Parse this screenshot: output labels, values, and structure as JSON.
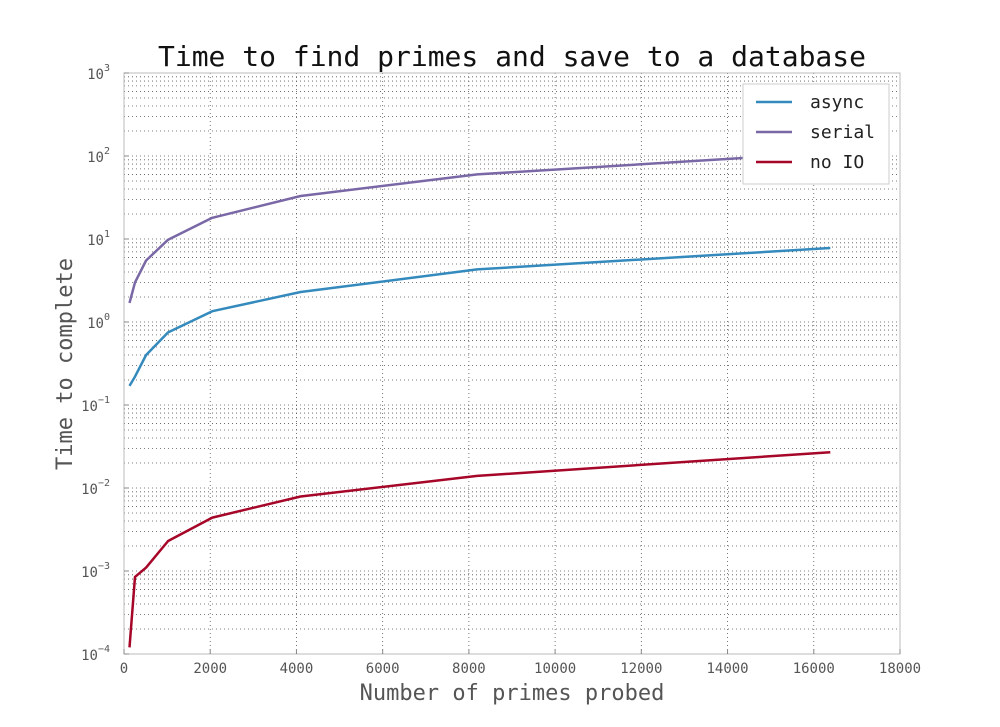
{
  "chart_data": {
    "type": "line",
    "title": "Time to find primes and save to a database",
    "xlabel": "Number of primes probed",
    "ylabel": "Time to complete",
    "xlim": [
      0,
      18000
    ],
    "ylim": [
      0.0001,
      1000
    ],
    "yscale": "log",
    "x_ticks": [
      0,
      2000,
      4000,
      6000,
      8000,
      10000,
      12000,
      14000,
      16000,
      18000
    ],
    "x_tick_labels": [
      "0",
      "2000",
      "4000",
      "6000",
      "8000",
      "10000",
      "12000",
      "14000",
      "16000",
      "18000"
    ],
    "y_tick_exponents": [
      -4,
      -3,
      -2,
      -1,
      0,
      1,
      2,
      3
    ],
    "y_tick_base": "10",
    "y_tick_exponent_labels": [
      "−4",
      "−3",
      "−2",
      "−1",
      "0",
      "1",
      "2",
      "3"
    ],
    "grid": true,
    "legend_position": "top-right",
    "series": [
      {
        "name": "async",
        "color": "#348ABD",
        "x": [
          128,
          256,
          512,
          1024,
          2048,
          4096,
          8192,
          16384
        ],
        "y": [
          0.17,
          0.22,
          0.4,
          0.75,
          1.35,
          2.3,
          4.3,
          7.8
        ]
      },
      {
        "name": "serial",
        "color": "#7A68A6",
        "x": [
          128,
          256,
          512,
          1024,
          2048,
          4096,
          8192,
          16384
        ],
        "y": [
          1.7,
          3.0,
          5.5,
          9.8,
          18,
          33,
          60,
          110
        ]
      },
      {
        "name": "no IO",
        "color": "#A60628",
        "x": [
          128,
          256,
          512,
          1024,
          2048,
          4096,
          8192,
          16384
        ],
        "y": [
          0.00012,
          0.00085,
          0.0011,
          0.0023,
          0.0044,
          0.0079,
          0.014,
          0.027
        ]
      }
    ]
  }
}
